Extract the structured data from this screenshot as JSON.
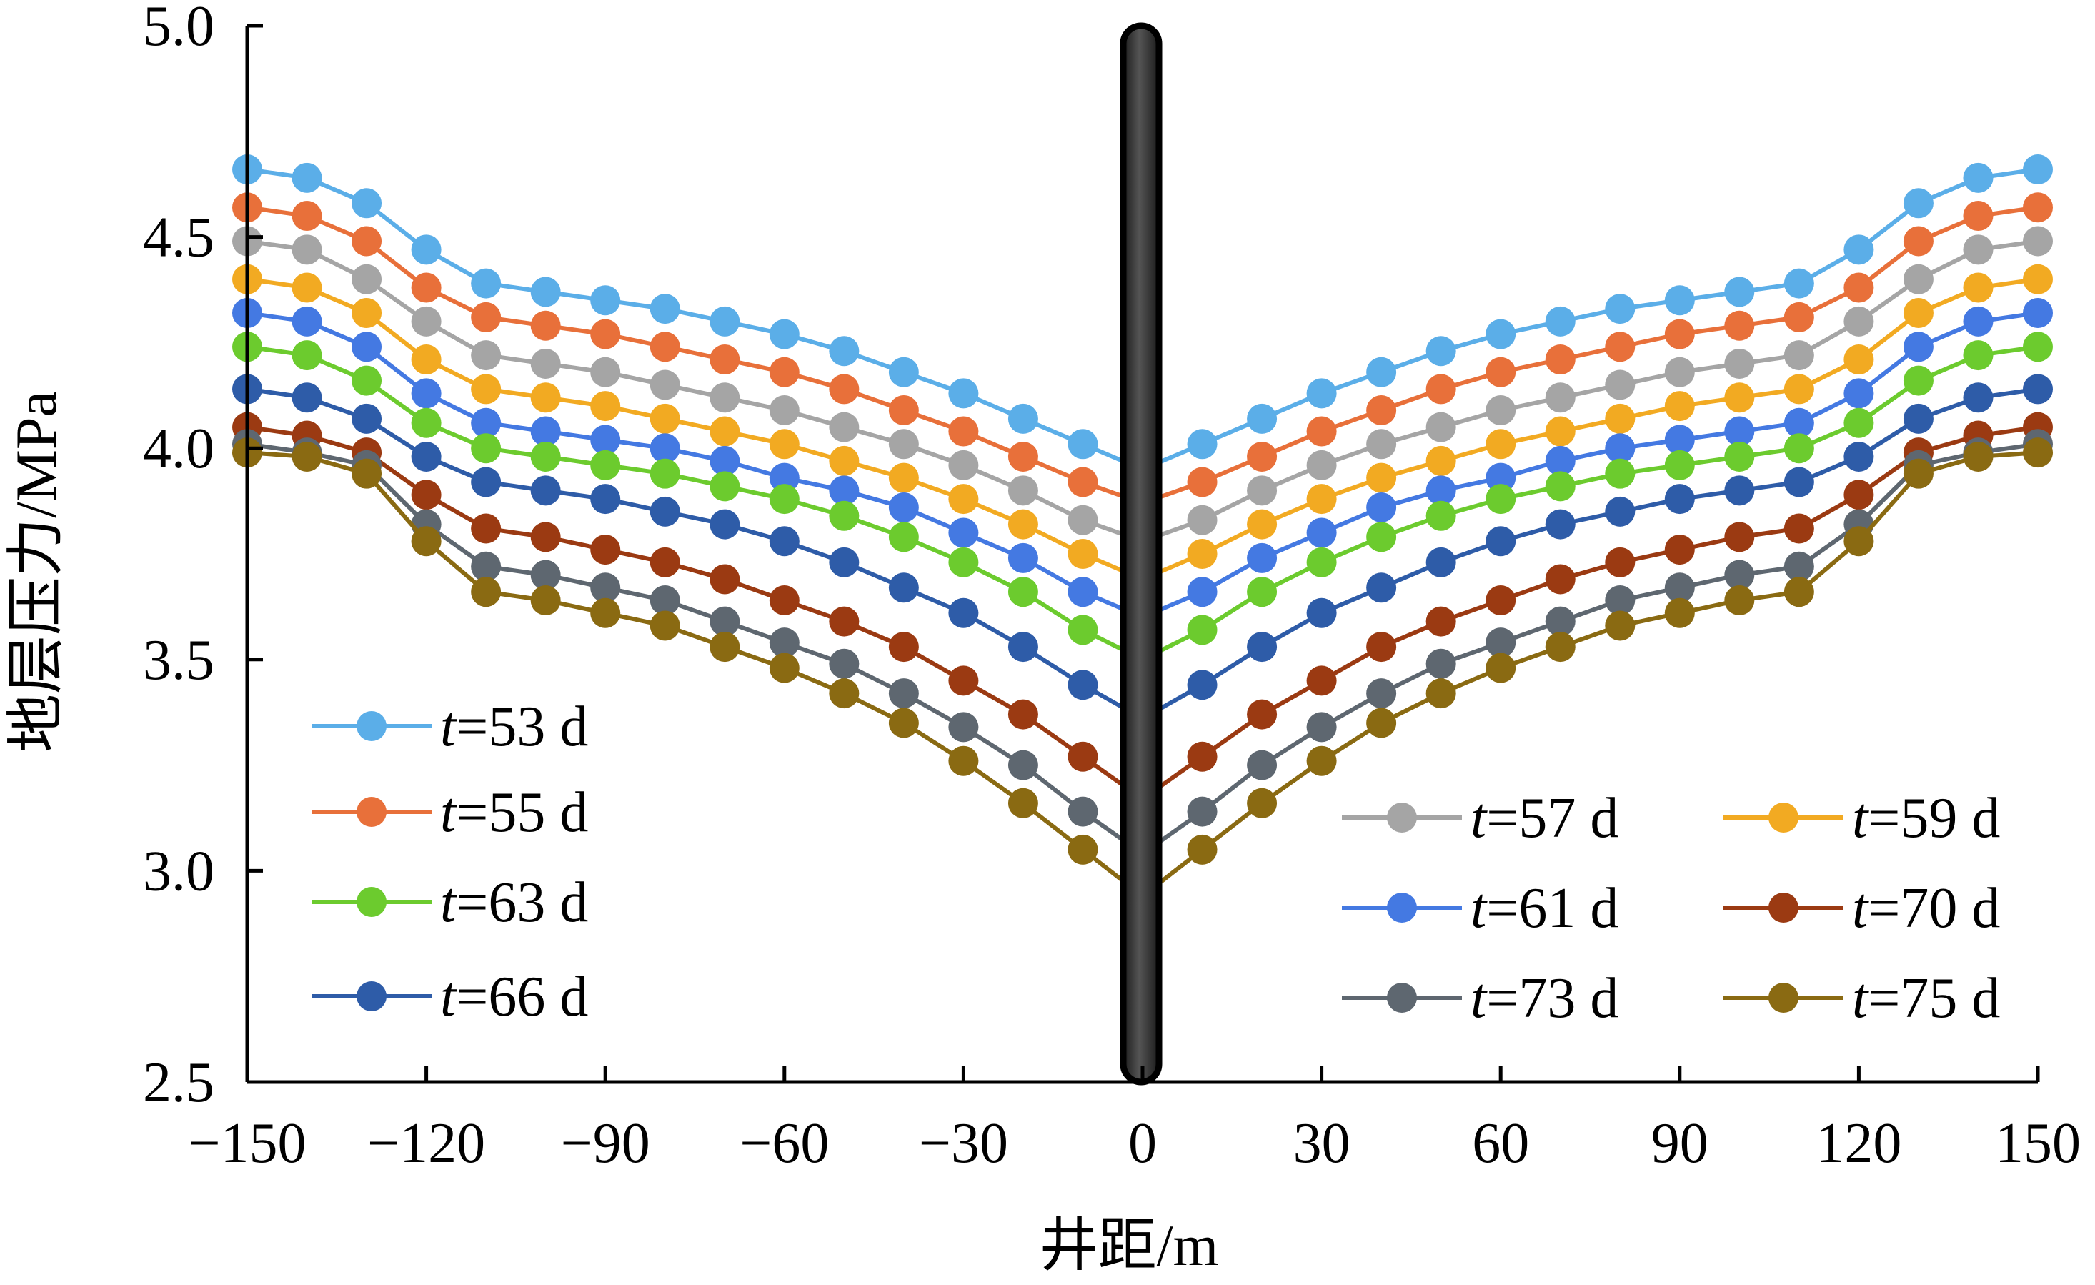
{
  "chart_data": {
    "type": "line",
    "xlabel": "井距/m",
    "ylabel": "地层压力/MPa",
    "xlim": [
      -150,
      150
    ],
    "ylim": [
      2.5,
      5.0
    ],
    "x_ticks": [
      "−150",
      "−120",
      "−90",
      "−60",
      "−30",
      "0",
      "30",
      "60",
      "90",
      "120",
      "150"
    ],
    "y_ticks": [
      "2.5",
      "3.0",
      "3.5",
      "4.0",
      "4.5",
      "5.0"
    ],
    "x": [
      -150,
      -140,
      -130,
      -120,
      -110,
      -100,
      -90,
      -80,
      -70,
      -60,
      -50,
      -40,
      -30,
      -20,
      -10,
      10,
      20,
      30,
      40,
      50,
      60,
      70,
      80,
      90,
      100,
      110,
      120,
      130,
      140,
      150
    ],
    "wellbore_x": 0,
    "series": [
      {
        "name": "t=53 d",
        "label_var": "t",
        "label_rest": "=53 d",
        "color": "#5BAEE8",
        "left_values": [
          4.66,
          4.64,
          4.58,
          4.47,
          4.39,
          4.37,
          4.35,
          4.33,
          4.3,
          4.27,
          4.23,
          4.18,
          4.13,
          4.07,
          4.01
        ],
        "center": 3.95
      },
      {
        "name": "t=55 d",
        "label_var": "t",
        "label_rest": "=55 d",
        "color": "#E8703A",
        "left_values": [
          4.57,
          4.55,
          4.49,
          4.38,
          4.31,
          4.29,
          4.27,
          4.24,
          4.21,
          4.18,
          4.14,
          4.09,
          4.04,
          3.98,
          3.92
        ],
        "center": 3.87
      },
      {
        "name": "t=57 d",
        "label_var": "t",
        "label_rest": "=57 d",
        "color": "#A5A5A5",
        "left_values": [
          4.49,
          4.47,
          4.4,
          4.3,
          4.22,
          4.2,
          4.18,
          4.15,
          4.12,
          4.09,
          4.05,
          4.01,
          3.96,
          3.9,
          3.83
        ],
        "center": 3.78
      },
      {
        "name": "t=59 d",
        "label_var": "t",
        "label_rest": "=59 d",
        "color": "#F2AA22",
        "left_values": [
          4.4,
          4.38,
          4.32,
          4.21,
          4.14,
          4.12,
          4.1,
          4.07,
          4.04,
          4.01,
          3.97,
          3.93,
          3.88,
          3.82,
          3.75
        ],
        "center": 3.69
      },
      {
        "name": "t=61 d",
        "label_var": "t",
        "label_rest": "=61 d",
        "color": "#4479E2",
        "left_values": [
          4.32,
          4.3,
          4.24,
          4.13,
          4.06,
          4.04,
          4.02,
          4.0,
          3.97,
          3.93,
          3.9,
          3.86,
          3.8,
          3.74,
          3.66
        ],
        "center": 3.6
      },
      {
        "name": "t=63 d",
        "label_var": "t",
        "label_rest": "=63 d",
        "color": "#6CCB2E",
        "left_values": [
          4.24,
          4.22,
          4.16,
          4.06,
          4.0,
          3.98,
          3.96,
          3.94,
          3.91,
          3.88,
          3.84,
          3.79,
          3.73,
          3.66,
          3.57
        ],
        "center": 3.5
      },
      {
        "name": "t=66 d",
        "label_var": "t",
        "label_rest": "=66 d",
        "color": "#2E5CA8",
        "left_values": [
          4.14,
          4.12,
          4.07,
          3.98,
          3.92,
          3.9,
          3.88,
          3.85,
          3.82,
          3.78,
          3.73,
          3.67,
          3.61,
          3.53,
          3.44
        ],
        "center": 3.36
      },
      {
        "name": "t=70 d",
        "label_var": "t",
        "label_rest": "=70 d",
        "color": "#9B3A12",
        "left_values": [
          4.05,
          4.03,
          3.99,
          3.89,
          3.81,
          3.79,
          3.76,
          3.73,
          3.69,
          3.64,
          3.59,
          3.53,
          3.45,
          3.37,
          3.27
        ],
        "center": 3.17
      },
      {
        "name": "t=73 d",
        "label_var": "t",
        "label_rest": "=73 d",
        "color": "#5E6770",
        "left_values": [
          4.01,
          3.99,
          3.96,
          3.82,
          3.72,
          3.7,
          3.67,
          3.64,
          3.59,
          3.54,
          3.49,
          3.42,
          3.34,
          3.25,
          3.14
        ],
        "center": 3.04
      },
      {
        "name": "t=75 d",
        "label_var": "t",
        "label_rest": "=75 d",
        "color": "#8A6A12",
        "left_values": [
          3.99,
          3.98,
          3.94,
          3.78,
          3.66,
          3.64,
          3.61,
          3.58,
          3.53,
          3.48,
          3.42,
          3.35,
          3.26,
          3.16,
          3.05
        ],
        "center": 2.94
      }
    ],
    "legend_left": [
      "t=53 d",
      "t=55 d",
      "t=63 d",
      "t=66 d"
    ],
    "legend_right": [
      [
        "t=57 d",
        "t=59 d"
      ],
      [
        "t=61 d",
        "t=70 d"
      ],
      [
        "t=73 d",
        "t=75 d"
      ]
    ]
  }
}
